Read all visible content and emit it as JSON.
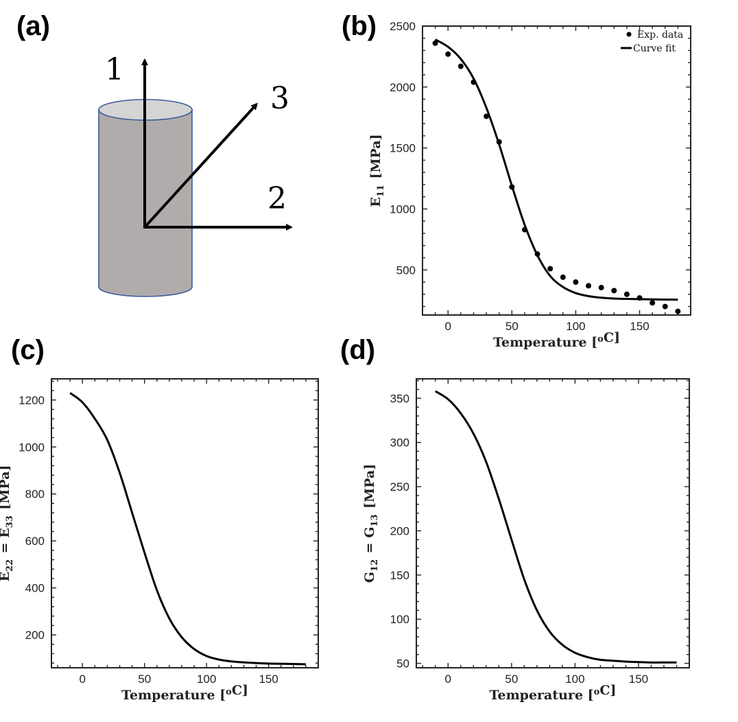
{
  "panels": {
    "a": "(a)",
    "b": "(b)",
    "c": "(c)",
    "d": "(d)"
  },
  "diagram": {
    "axis_1": "1",
    "axis_2": "2",
    "axis_3": "3",
    "cylinder_fill": "#b0acac",
    "cylinder_top_fill": "#d4d4d4",
    "cylinder_stroke": "#3c5a9a"
  },
  "chart_data": [
    {
      "id": "b",
      "type": "line",
      "xlabel": "Temperature [°C]",
      "ylabel": "E11 [MPa]",
      "xlim": [
        -20,
        190
      ],
      "ylim": [
        130,
        2500
      ],
      "xticks": [
        0,
        50,
        100,
        150
      ],
      "yticks": [
        500,
        1000,
        1500,
        2000,
        2500
      ],
      "legend": {
        "position": "top-right",
        "scatter_label": "Exp. data",
        "line_label": "Curve fit"
      },
      "series": [
        {
          "name": "Exp. data",
          "kind": "scatter",
          "x": [
            -10,
            0,
            10,
            20,
            30,
            40,
            50,
            60,
            70,
            80,
            90,
            100,
            110,
            120,
            130,
            140,
            150,
            160,
            170,
            180
          ],
          "y": [
            2360,
            2270,
            2170,
            2040,
            1760,
            1550,
            1180,
            830,
            630,
            510,
            440,
            400,
            370,
            355,
            330,
            300,
            270,
            230,
            200,
            160
          ]
        },
        {
          "name": "Curve fit",
          "kind": "line",
          "x": [
            -10,
            0,
            10,
            20,
            30,
            40,
            50,
            60,
            70,
            80,
            90,
            100,
            110,
            120,
            130,
            140,
            150,
            160,
            170,
            180
          ],
          "y": [
            2390,
            2330,
            2230,
            2070,
            1830,
            1530,
            1190,
            870,
            620,
            450,
            360,
            310,
            285,
            272,
            265,
            262,
            260,
            258,
            257,
            256
          ]
        }
      ]
    },
    {
      "id": "c",
      "type": "line",
      "xlabel": "Temperature [°C]",
      "ylabel": "E22 = E33 [MPa]",
      "xlim": [
        -25,
        190
      ],
      "ylim": [
        60,
        1290
      ],
      "xticks": [
        0,
        50,
        100,
        150
      ],
      "yticks": [
        200,
        400,
        600,
        800,
        1000,
        1200
      ],
      "series": [
        {
          "name": "E22",
          "kind": "line",
          "x": [
            -10,
            0,
            10,
            20,
            30,
            40,
            50,
            60,
            70,
            80,
            90,
            100,
            110,
            120,
            130,
            140,
            150,
            160,
            170,
            180
          ],
          "y": [
            1230,
            1190,
            1120,
            1030,
            890,
            720,
            550,
            390,
            270,
            190,
            140,
            110,
            95,
            87,
            83,
            80,
            78,
            77,
            76,
            75
          ]
        }
      ]
    },
    {
      "id": "d",
      "type": "line",
      "xlabel": "Temperature [°C]",
      "ylabel": "G12 = G13 [MPa]",
      "xlim": [
        -25,
        190
      ],
      "ylim": [
        45,
        372
      ],
      "xticks": [
        0,
        50,
        100,
        150
      ],
      "yticks": [
        50,
        100,
        150,
        200,
        250,
        300,
        350
      ],
      "series": [
        {
          "name": "G12",
          "kind": "line",
          "x": [
            -10,
            0,
            10,
            20,
            30,
            40,
            50,
            60,
            70,
            80,
            90,
            100,
            110,
            120,
            130,
            140,
            150,
            160,
            170,
            180
          ],
          "y": [
            358,
            349,
            333,
            310,
            278,
            236,
            190,
            145,
            110,
            86,
            71,
            62,
            57,
            54,
            53,
            52,
            51.5,
            51,
            51,
            51
          ]
        }
      ]
    }
  ]
}
